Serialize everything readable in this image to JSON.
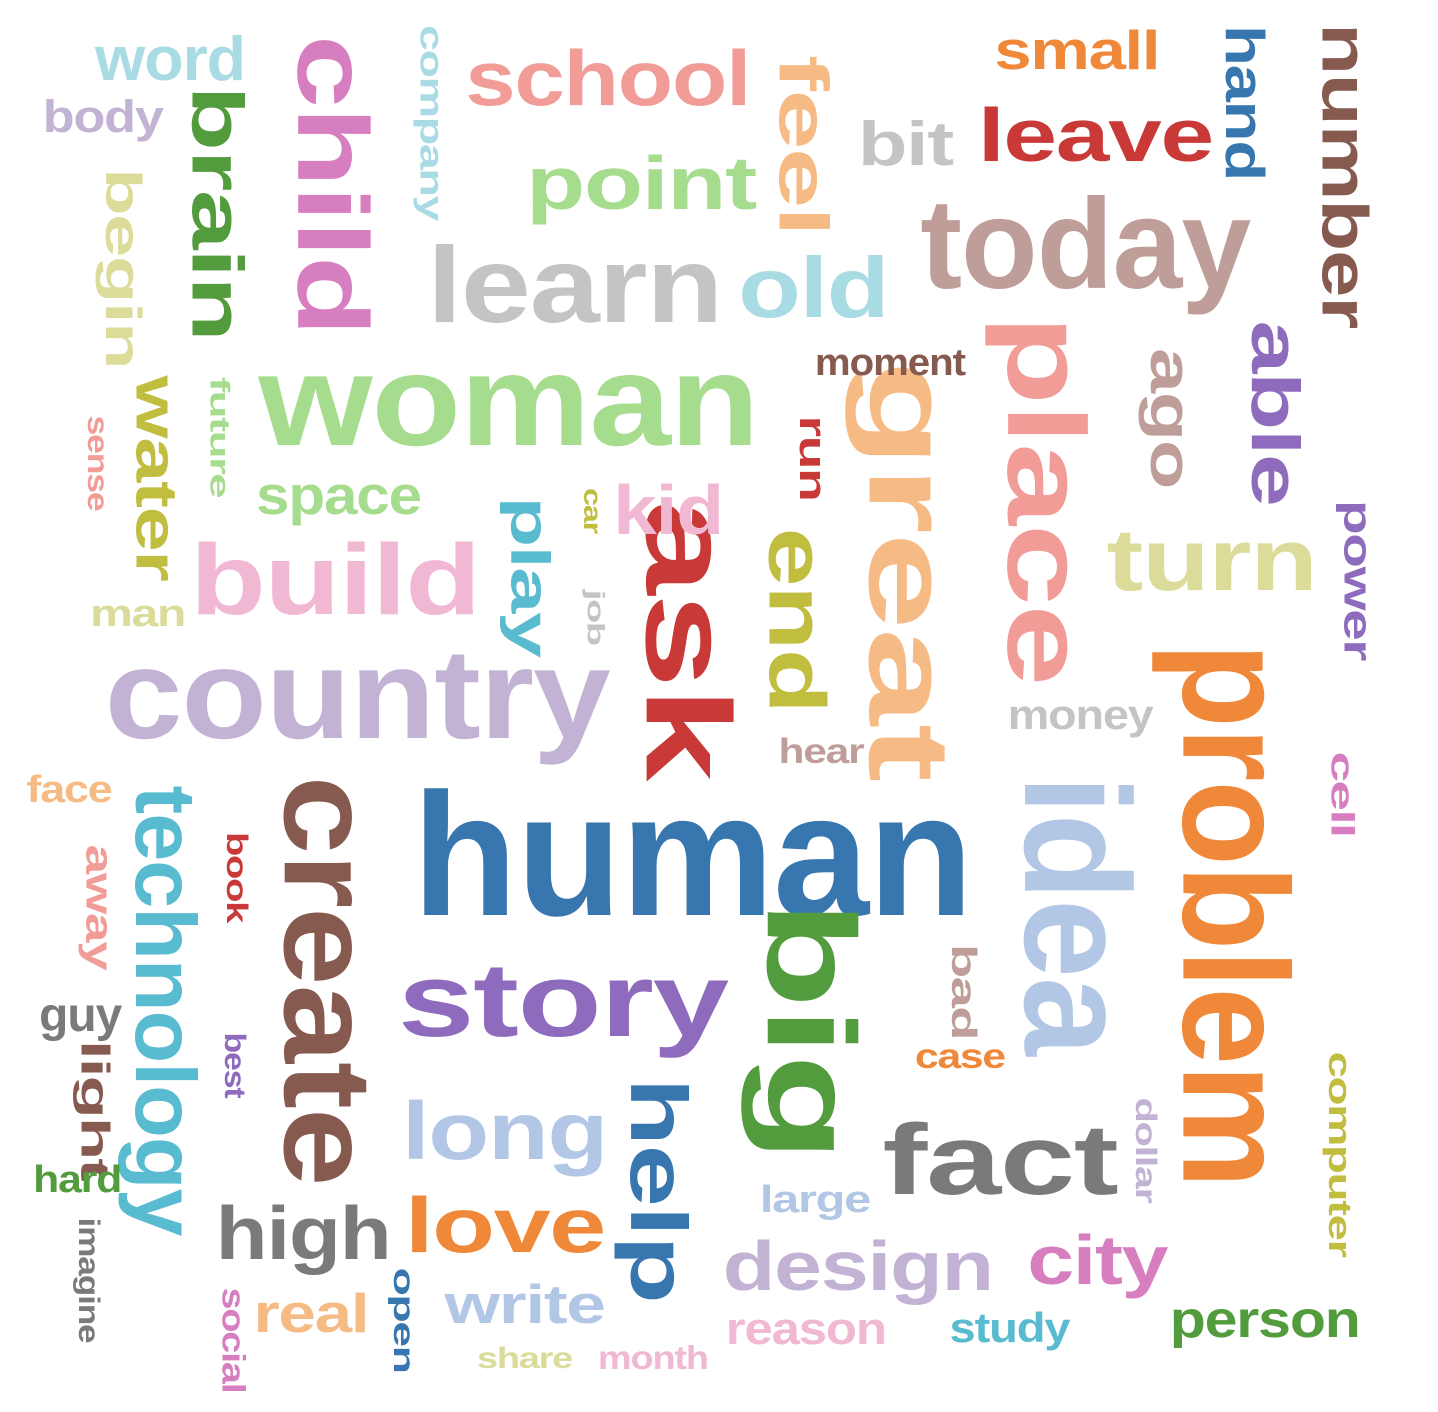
{
  "words": [
    {
      "text": "human",
      "color": "#3776ae"
    },
    {
      "text": "woman",
      "color": "#a6dc8e"
    },
    {
      "text": "country",
      "color": "#c2b2d4"
    },
    {
      "text": "today",
      "color": "#bf9e99"
    },
    {
      "text": "learn",
      "color": "#c4c4c4"
    },
    {
      "text": "story",
      "color": "#8e6bbc"
    },
    {
      "text": "idea",
      "color": "#b2c6e6"
    },
    {
      "text": "problem",
      "color": "#f0883a"
    },
    {
      "text": "create",
      "color": "#875a4f"
    },
    {
      "text": "technology",
      "color": "#59bbcf"
    },
    {
      "text": "great",
      "color": "#f6bb85"
    },
    {
      "text": "place",
      "color": "#f29c98"
    },
    {
      "text": "child",
      "color": "#d67ebf"
    },
    {
      "text": "build",
      "color": "#f0b8d2"
    },
    {
      "text": "ask",
      "color": "#c93937"
    },
    {
      "text": "big",
      "color": "#529c3e"
    },
    {
      "text": "fact",
      "color": "#7a7a7a"
    },
    {
      "text": "school",
      "color": "#f29c98"
    },
    {
      "text": "point",
      "color": "#a6dc8e"
    },
    {
      "text": "leave",
      "color": "#c93937"
    },
    {
      "text": "number",
      "color": "#875a4f"
    },
    {
      "text": "turn",
      "color": "#dcdc9a"
    },
    {
      "text": "long",
      "color": "#b2c6e6"
    },
    {
      "text": "help",
      "color": "#3776ae"
    },
    {
      "text": "love",
      "color": "#f0883a"
    },
    {
      "text": "high",
      "color": "#7a7a7a"
    },
    {
      "text": "design",
      "color": "#c2b2d4"
    },
    {
      "text": "city",
      "color": "#d67ebf"
    },
    {
      "text": "person",
      "color": "#529c3e"
    },
    {
      "text": "old",
      "color": "#a9dbe4"
    },
    {
      "text": "end",
      "color": "#c0bd3f"
    },
    {
      "text": "brain",
      "color": "#529c3e"
    },
    {
      "text": "feel",
      "color": "#f6bb85"
    },
    {
      "text": "water",
      "color": "#c0bd3f"
    },
    {
      "text": "able",
      "color": "#8e6bbc"
    },
    {
      "text": "ago",
      "color": "#bf9e99"
    },
    {
      "text": "kid",
      "color": "#f0b8d2"
    },
    {
      "text": "play",
      "color": "#59bbcf"
    },
    {
      "text": "word",
      "color": "#a9dbe4"
    },
    {
      "text": "small",
      "color": "#f0883a"
    },
    {
      "text": "hand",
      "color": "#3776ae"
    },
    {
      "text": "bit",
      "color": "#c4c4c4"
    },
    {
      "text": "begin",
      "color": "#dcdc9a"
    },
    {
      "text": "space",
      "color": "#a6dc8e"
    },
    {
      "text": "write",
      "color": "#b2c6e6"
    },
    {
      "text": "real",
      "color": "#f6bb85"
    },
    {
      "text": "body",
      "color": "#c2b2d4"
    },
    {
      "text": "money",
      "color": "#c4c4c4"
    },
    {
      "text": "power",
      "color": "#8e6bbc"
    },
    {
      "text": "moment",
      "color": "#875a4f"
    },
    {
      "text": "company",
      "color": "#a9dbe4"
    },
    {
      "text": "run",
      "color": "#c93937"
    },
    {
      "text": "reason",
      "color": "#f0b8d2"
    },
    {
      "text": "computer",
      "color": "#c0bd3f"
    },
    {
      "text": "study",
      "color": "#59bbcf"
    },
    {
      "text": "large",
      "color": "#b2c6e6"
    },
    {
      "text": "hear",
      "color": "#bf9e99"
    },
    {
      "text": "man",
      "color": "#dcdc9a"
    },
    {
      "text": "face",
      "color": "#f6bb85"
    },
    {
      "text": "away",
      "color": "#f29c98"
    },
    {
      "text": "guy",
      "color": "#7a7a7a"
    },
    {
      "text": "light",
      "color": "#875a4f"
    },
    {
      "text": "hard",
      "color": "#529c3e"
    },
    {
      "text": "imagine",
      "color": "#7a7a7a"
    },
    {
      "text": "social",
      "color": "#d67ebf"
    },
    {
      "text": "open",
      "color": "#3776ae"
    },
    {
      "text": "share",
      "color": "#dcdc9a"
    },
    {
      "text": "month",
      "color": "#f0b8d2"
    },
    {
      "text": "case",
      "color": "#f0883a"
    },
    {
      "text": "bad",
      "color": "#bf9e99"
    },
    {
      "text": "cell",
      "color": "#d67ebf"
    },
    {
      "text": "dollar",
      "color": "#c2b2d4"
    },
    {
      "text": "best",
      "color": "#8e6bbc"
    },
    {
      "text": "book",
      "color": "#c93937"
    },
    {
      "text": "future",
      "color": "#a6dc8e"
    },
    {
      "text": "sense",
      "color": "#f29c98"
    },
    {
      "text": "car",
      "color": "#c0bd3f"
    },
    {
      "text": "job",
      "color": "#c4c4c4"
    }
  ]
}
